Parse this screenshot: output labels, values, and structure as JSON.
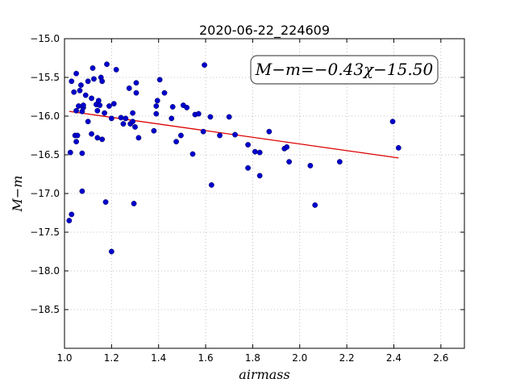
{
  "chart_data": {
    "type": "scatter",
    "title": "2020-06-22_224609",
    "xlabel": "airmass",
    "ylabel": "M−m",
    "xlim": [
      1.0,
      2.7
    ],
    "ylim": [
      -19.0,
      -15.0
    ],
    "y_inverted": true,
    "grid": true,
    "xticks": [
      1.0,
      1.2,
      1.4,
      1.6,
      1.8,
      2.0,
      2.2,
      2.4,
      2.6
    ],
    "xtick_labels": [
      "1.0",
      "1.2",
      "1.4",
      "1.6",
      "1.8",
      "2.0",
      "2.2",
      "2.4",
      "2.6"
    ],
    "yticks": [
      -15.0,
      -15.5,
      -16.0,
      -16.5,
      -17.0,
      -17.5,
      -18.0,
      -18.5
    ],
    "ytick_labels": [
      "−15.0",
      "−15.5",
      "−16.0",
      "−16.5",
      "−17.0",
      "−17.5",
      "−18.0",
      "−18.5"
    ],
    "annotation": "M−m=−0.43χ−15.50",
    "fit": {
      "slope": -0.43,
      "intercept": -15.5,
      "x_range": [
        1.02,
        2.42
      ]
    },
    "colors": {
      "points": "#0000cc",
      "fit_line": "#dd0000",
      "grid": "#b0b0b0"
    },
    "points": [
      [
        1.02,
        -17.35
      ],
      [
        1.025,
        -16.47
      ],
      [
        1.03,
        -17.27
      ],
      [
        1.03,
        -15.55
      ],
      [
        1.04,
        -15.69
      ],
      [
        1.045,
        -16.25
      ],
      [
        1.05,
        -15.45
      ],
      [
        1.05,
        -16.33
      ],
      [
        1.055,
        -16.25
      ],
      [
        1.05,
        -15.93
      ],
      [
        1.06,
        -15.87
      ],
      [
        1.065,
        -15.67
      ],
      [
        1.07,
        -15.6
      ],
      [
        1.075,
        -15.94
      ],
      [
        1.08,
        -15.89
      ],
      [
        1.075,
        -16.97
      ],
      [
        1.08,
        -15.86
      ],
      [
        1.075,
        -16.48
      ],
      [
        1.09,
        -15.73
      ],
      [
        1.1,
        -15.55
      ],
      [
        1.1,
        -16.07
      ],
      [
        1.115,
        -15.77
      ],
      [
        1.115,
        -16.23
      ],
      [
        1.12,
        -15.38
      ],
      [
        1.125,
        -15.52
      ],
      [
        1.135,
        -15.85
      ],
      [
        1.14,
        -15.93
      ],
      [
        1.14,
        -16.28
      ],
      [
        1.145,
        -15.8
      ],
      [
        1.15,
        -15.86
      ],
      [
        1.155,
        -15.5
      ],
      [
        1.16,
        -15.55
      ],
      [
        1.16,
        -16.3
      ],
      [
        1.17,
        -15.96
      ],
      [
        1.175,
        -17.11
      ],
      [
        1.18,
        -15.33
      ],
      [
        1.19,
        -15.87
      ],
      [
        1.2,
        -16.03
      ],
      [
        1.21,
        -15.84
      ],
      [
        1.2,
        -17.75
      ],
      [
        1.22,
        -15.4
      ],
      [
        1.24,
        -16.02
      ],
      [
        1.25,
        -16.1
      ],
      [
        1.26,
        -16.03
      ],
      [
        1.275,
        -15.64
      ],
      [
        1.28,
        -16.1
      ],
      [
        1.29,
        -16.07
      ],
      [
        1.29,
        -15.96
      ],
      [
        1.295,
        -17.13
      ],
      [
        1.3,
        -16.14
      ],
      [
        1.305,
        -15.57
      ],
      [
        1.305,
        -15.7
      ],
      [
        1.315,
        -16.28
      ],
      [
        1.38,
        -16.19
      ],
      [
        1.39,
        -15.87
      ],
      [
        1.39,
        -15.97
      ],
      [
        1.395,
        -15.8
      ],
      [
        1.405,
        -15.53
      ],
      [
        1.425,
        -15.7
      ],
      [
        1.455,
        -16.03
      ],
      [
        1.46,
        -15.88
      ],
      [
        1.475,
        -16.33
      ],
      [
        1.495,
        -16.25
      ],
      [
        1.505,
        -15.86
      ],
      [
        1.52,
        -15.89
      ],
      [
        1.545,
        -16.49
      ],
      [
        1.555,
        -15.98
      ],
      [
        1.57,
        -15.97
      ],
      [
        1.59,
        -16.2
      ],
      [
        1.595,
        -15.34
      ],
      [
        1.62,
        -16.01
      ],
      [
        1.625,
        -16.89
      ],
      [
        1.66,
        -16.25
      ],
      [
        1.7,
        -16.01
      ],
      [
        1.725,
        -16.24
      ],
      [
        1.78,
        -16.37
      ],
      [
        1.78,
        -16.67
      ],
      [
        1.81,
        -16.46
      ],
      [
        1.83,
        -16.47
      ],
      [
        1.83,
        -16.77
      ],
      [
        1.87,
        -16.2
      ],
      [
        1.935,
        -16.42
      ],
      [
        1.945,
        -16.4
      ],
      [
        1.955,
        -16.59
      ],
      [
        2.045,
        -16.64
      ],
      [
        2.065,
        -17.15
      ],
      [
        2.17,
        -16.59
      ],
      [
        2.395,
        -16.07
      ],
      [
        2.42,
        -16.41
      ]
    ]
  }
}
